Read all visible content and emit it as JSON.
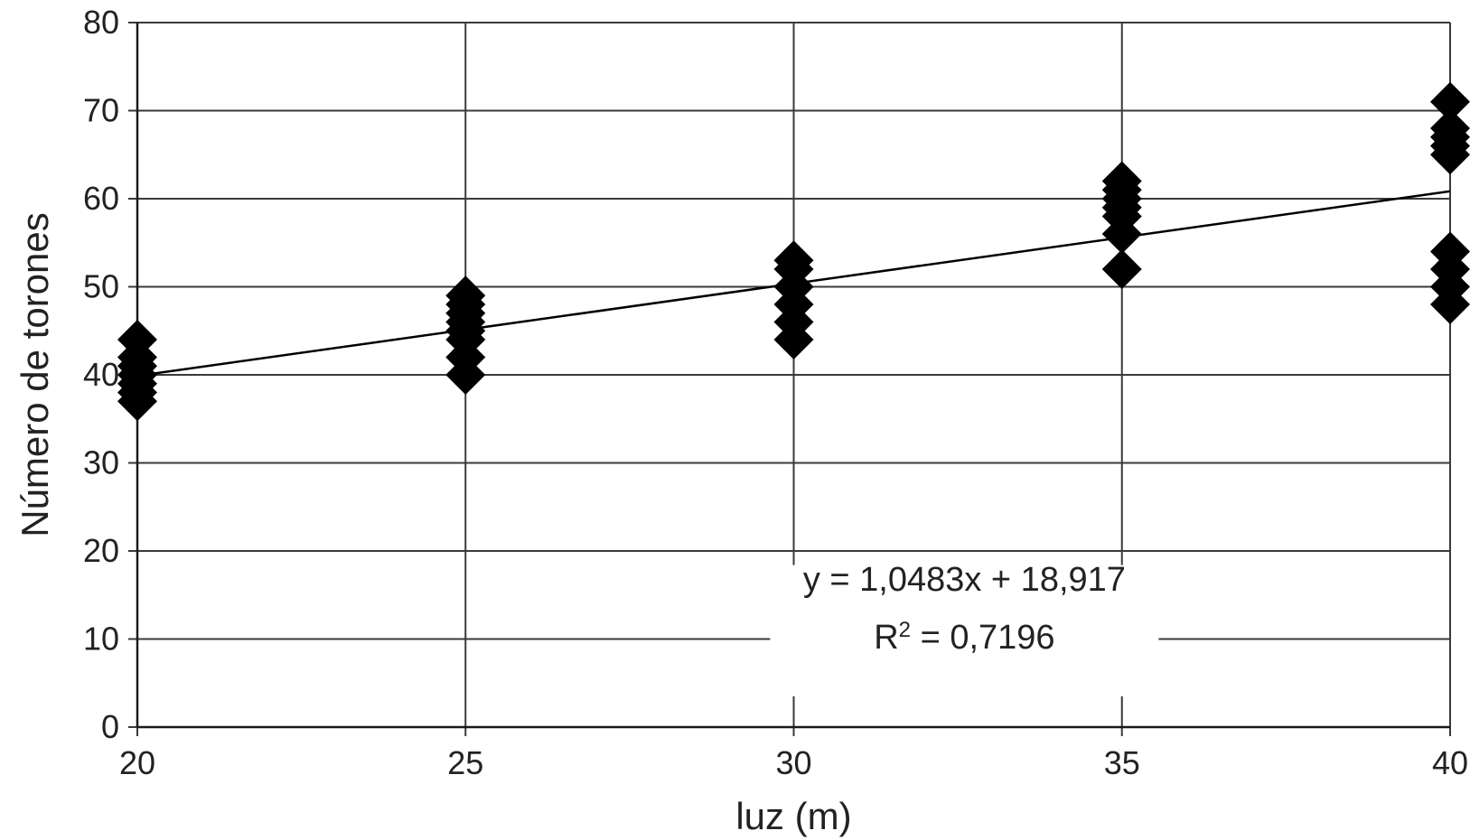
{
  "chart_data": {
    "type": "scatter",
    "title": "",
    "xlabel": "luz (m)",
    "ylabel": "Número de torones",
    "xlim": [
      20,
      40
    ],
    "ylim": [
      0,
      80
    ],
    "xticks": [
      20,
      25,
      30,
      35,
      40
    ],
    "yticks": [
      0,
      10,
      20,
      30,
      40,
      50,
      60,
      70,
      80
    ],
    "xtick_labels": [
      "20",
      "25",
      "30",
      "35",
      "40"
    ],
    "ytick_labels": [
      "0",
      "10",
      "20",
      "30",
      "40",
      "50",
      "60",
      "70",
      "80"
    ],
    "grid": true,
    "series": [
      {
        "marker": "diamond",
        "color": "#000000",
        "points": [
          {
            "x": 20,
            "y": 37
          },
          {
            "x": 20,
            "y": 38
          },
          {
            "x": 20,
            "y": 39
          },
          {
            "x": 20,
            "y": 40
          },
          {
            "x": 20,
            "y": 41
          },
          {
            "x": 20,
            "y": 42
          },
          {
            "x": 20,
            "y": 44
          },
          {
            "x": 25,
            "y": 40
          },
          {
            "x": 25,
            "y": 42
          },
          {
            "x": 25,
            "y": 44
          },
          {
            "x": 25,
            "y": 45
          },
          {
            "x": 25,
            "y": 46
          },
          {
            "x": 25,
            "y": 47
          },
          {
            "x": 25,
            "y": 48
          },
          {
            "x": 25,
            "y": 49
          },
          {
            "x": 30,
            "y": 44
          },
          {
            "x": 30,
            "y": 46
          },
          {
            "x": 30,
            "y": 48
          },
          {
            "x": 30,
            "y": 50
          },
          {
            "x": 30,
            "y": 52
          },
          {
            "x": 30,
            "y": 53
          },
          {
            "x": 35,
            "y": 52
          },
          {
            "x": 35,
            "y": 56
          },
          {
            "x": 35,
            "y": 58
          },
          {
            "x": 35,
            "y": 59
          },
          {
            "x": 35,
            "y": 60
          },
          {
            "x": 35,
            "y": 61
          },
          {
            "x": 35,
            "y": 62
          },
          {
            "x": 40,
            "y": 48
          },
          {
            "x": 40,
            "y": 50
          },
          {
            "x": 40,
            "y": 52
          },
          {
            "x": 40,
            "y": 54
          },
          {
            "x": 40,
            "y": 65
          },
          {
            "x": 40,
            "y": 66
          },
          {
            "x": 40,
            "y": 67
          },
          {
            "x": 40,
            "y": 68
          },
          {
            "x": 40,
            "y": 71
          }
        ]
      }
    ],
    "trendline": {
      "type": "linear",
      "slope": 1.0483,
      "intercept": 18.917,
      "equation": "y = 1,0483x + 18,917",
      "r2_prefix": "R",
      "r2_sup": "2",
      "r2_value": " = 0,7196"
    }
  }
}
